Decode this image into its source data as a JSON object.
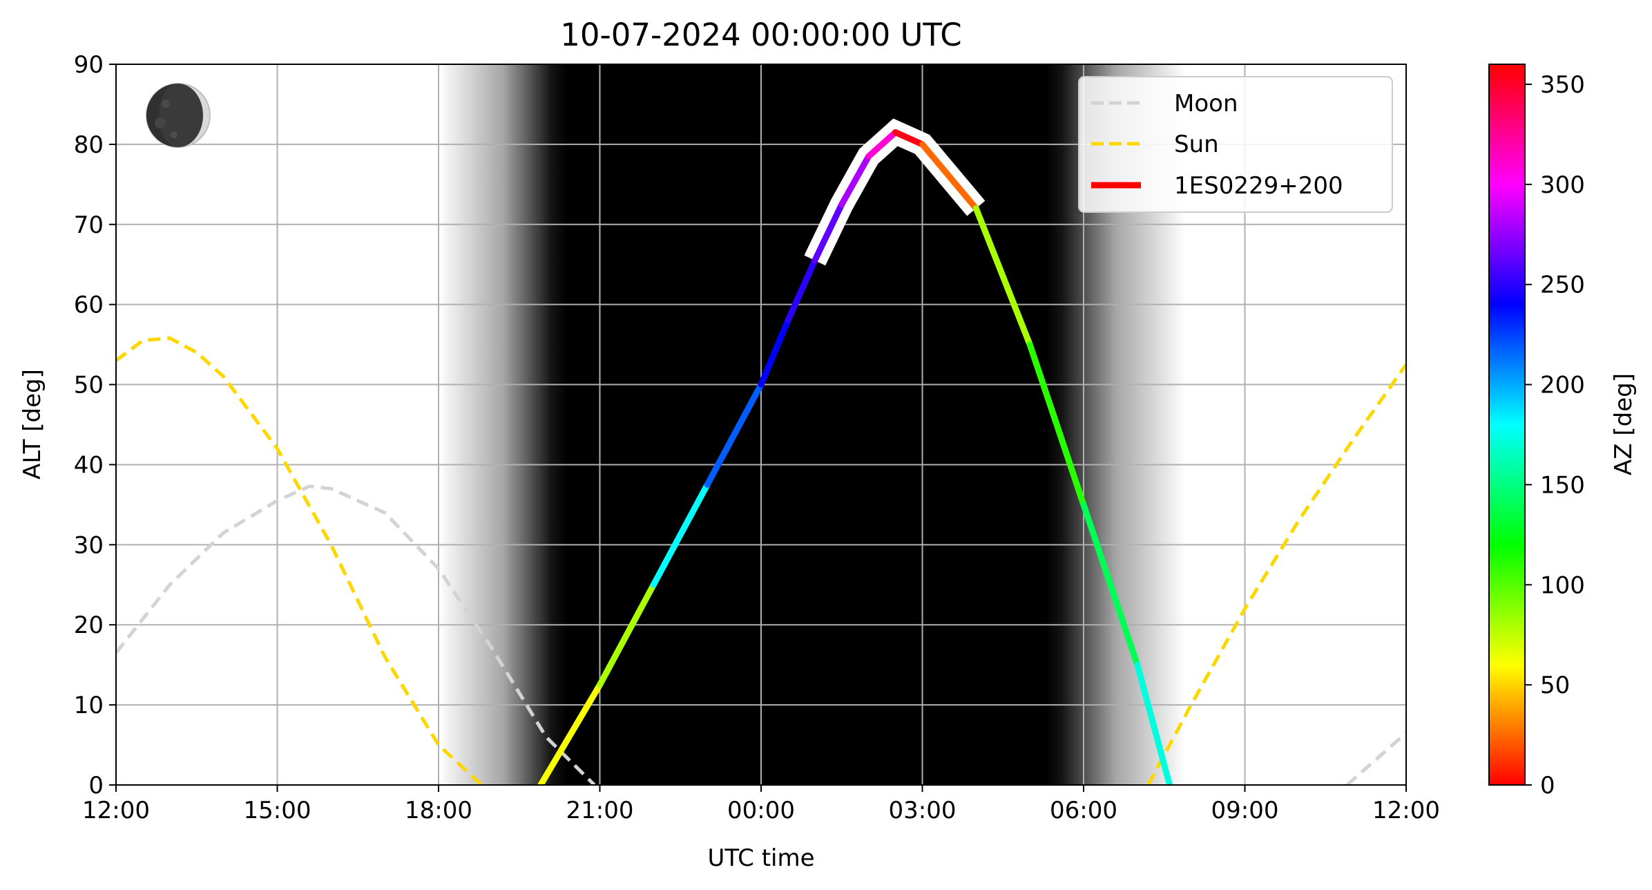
{
  "chart_data": {
    "type": "line",
    "title": "10-07-2024 00:00:00 UTC",
    "xlabel": "UTC time",
    "ylabel": "ALT [deg]",
    "colorbar_label": "AZ [deg]",
    "xlim": [
      0,
      24
    ],
    "ylim": [
      0,
      90
    ],
    "x_unit": "hours after 12:00 UTC",
    "x_ticks": [
      0,
      3,
      6,
      9,
      12,
      15,
      18,
      21,
      24
    ],
    "x_tick_labels": [
      "12:00",
      "15:00",
      "18:00",
      "21:00",
      "00:00",
      "03:00",
      "06:00",
      "09:00",
      "12:00"
    ],
    "y_ticks": [
      0,
      10,
      20,
      30,
      40,
      50,
      60,
      70,
      80,
      90
    ],
    "y_tick_labels": [
      "0",
      "10",
      "20",
      "30",
      "40",
      "50",
      "60",
      "70",
      "80",
      "90"
    ],
    "colorbar_ticks": [
      0,
      50,
      100,
      150,
      200,
      250,
      300,
      350
    ],
    "colorbar_tick_labels": [
      "0",
      "50",
      "100",
      "150",
      "200",
      "250",
      "300",
      "350"
    ],
    "colorbar_range": [
      0,
      360
    ],
    "grid": true,
    "legend_position": "top-right",
    "legend": [
      "Moon",
      "Sun",
      "1ES0229+200"
    ],
    "night_shading": {
      "sunset_start": 6.0,
      "dark_start": 8.4,
      "dark_end": 17.3,
      "sunrise_end": 19.9
    },
    "moon_phase_icon": "waxing-crescent-moon-icon",
    "series": [
      {
        "name": "Moon",
        "style": "dashed",
        "color": "#d3d3d3",
        "x": [
          0,
          1,
          2,
          3,
          3.6,
          4,
          5,
          6,
          7,
          8,
          8.9
        ],
        "y": [
          16.5,
          25,
          31.5,
          35.5,
          37.3,
          37,
          34,
          27,
          17,
          6,
          0
        ]
      },
      {
        "name": "Sun",
        "style": "dashed",
        "color": "#ffd700",
        "segments": [
          {
            "x": [
              0,
              0.5,
              1,
              1.5,
              2,
              3,
              4,
              5,
              6,
              6.8
            ],
            "y": [
              53,
              55.5,
              55.8,
              54,
              51,
              42,
              30,
              16,
              5,
              0
            ]
          },
          {
            "x": [
              19.2,
              20,
              21,
              22,
              23,
              24
            ],
            "y": [
              0,
              10,
              22,
              33,
              43,
              52.5
            ]
          }
        ]
      },
      {
        "name": "1ES0229+200",
        "style": "solid",
        "color_by": "azimuth",
        "x": [
          7.9,
          9,
          10,
          11,
          12,
          12.5,
          13,
          13.5,
          14,
          14.5,
          15,
          16,
          17,
          18,
          19,
          19.6
        ],
        "y": [
          0,
          12.5,
          25,
          37.5,
          50,
          58,
          65.5,
          72.5,
          78.5,
          81.5,
          80,
          72,
          55,
          35,
          15,
          0
        ],
        "az": [
          62,
          80,
          180,
          218,
          240,
          250,
          262,
          280,
          310,
          355,
          25,
          80,
          110,
          140,
          172,
          172
        ]
      }
    ],
    "secondary_moon_segment": {
      "x": [
        22.9,
        24
      ],
      "y": [
        0,
        6.5
      ]
    }
  }
}
